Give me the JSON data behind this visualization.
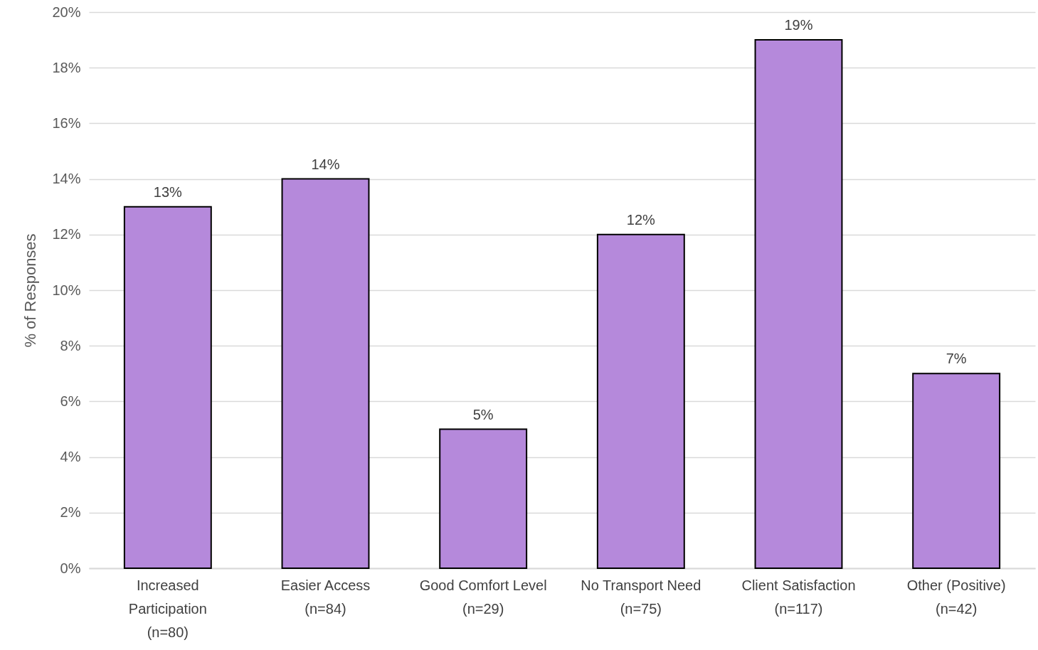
{
  "chart_data": {
    "type": "bar",
    "ylabel": "% of Responses",
    "categories": [
      "Increased\nParticipation\n(n=80)",
      "Easier Access\n(n=84)",
      "Good Comfort Level\n(n=29)",
      "No Transport Need\n(n=75)",
      "Client Satisfaction\n(n=117)",
      "Other (Positive)\n(n=42)"
    ],
    "values": [
      13,
      14,
      5,
      12,
      19,
      7
    ],
    "value_labels": [
      "13%",
      "14%",
      "5%",
      "12%",
      "19%",
      "7%"
    ],
    "color": "#b589db",
    "ylim": [
      0,
      20
    ],
    "yticks": [
      {
        "value": 0,
        "label": "0%"
      },
      {
        "value": 2,
        "label": "2%"
      },
      {
        "value": 4,
        "label": "4%"
      },
      {
        "value": 6,
        "label": "6%"
      },
      {
        "value": 8,
        "label": "8%"
      },
      {
        "value": 10,
        "label": "10%"
      },
      {
        "value": 12,
        "label": "12%"
      },
      {
        "value": 14,
        "label": "14%"
      },
      {
        "value": 16,
        "label": "16%"
      },
      {
        "value": 18,
        "label": "18%"
      },
      {
        "value": 20,
        "label": "20%"
      }
    ],
    "grid": true
  }
}
